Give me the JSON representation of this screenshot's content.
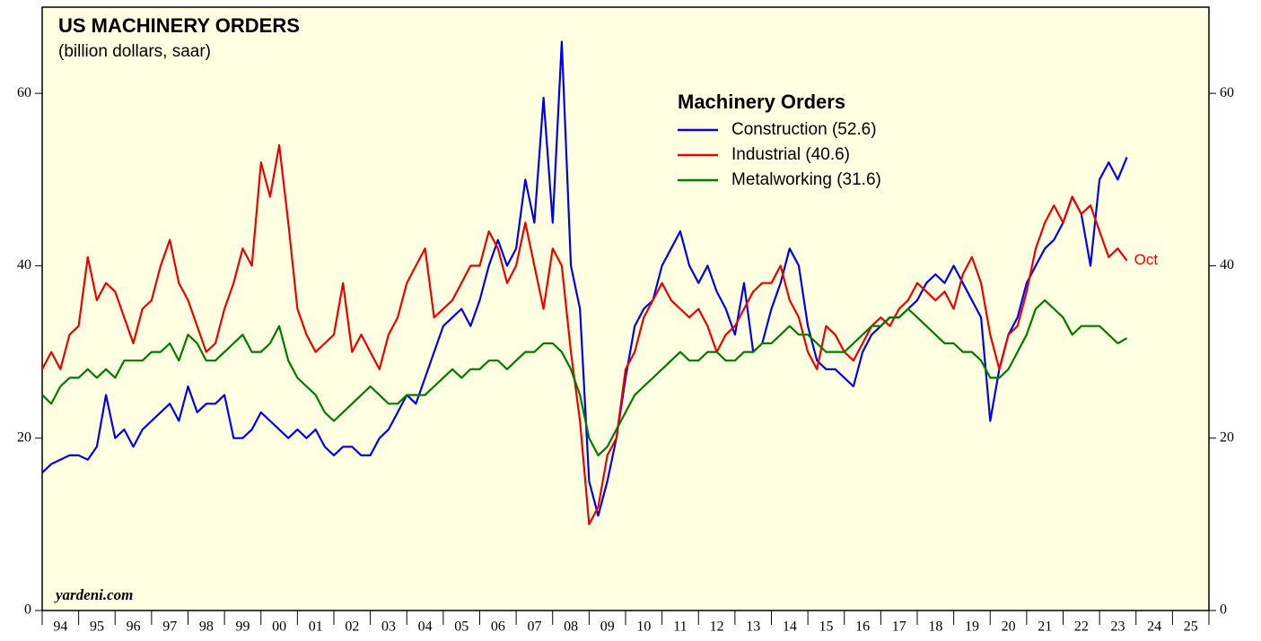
{
  "chart_data": {
    "type": "line",
    "title": "US MACHINERY ORDERS",
    "subtitle": "(billion dollars, saar)",
    "legend_title": "Machinery Orders",
    "annotation": "Oct",
    "source": "yardeni.com",
    "xlim": [
      1994,
      2026
    ],
    "xticks": [
      {
        "value": 1994,
        "label": "94"
      },
      {
        "value": 1995,
        "label": "95"
      },
      {
        "value": 1996,
        "label": "96"
      },
      {
        "value": 1997,
        "label": "97"
      },
      {
        "value": 1998,
        "label": "98"
      },
      {
        "value": 1999,
        "label": "99"
      },
      {
        "value": 2000,
        "label": "00"
      },
      {
        "value": 2001,
        "label": "01"
      },
      {
        "value": 2002,
        "label": "02"
      },
      {
        "value": 2003,
        "label": "03"
      },
      {
        "value": 2004,
        "label": "04"
      },
      {
        "value": 2005,
        "label": "05"
      },
      {
        "value": 2006,
        "label": "06"
      },
      {
        "value": 2007,
        "label": "07"
      },
      {
        "value": 2008,
        "label": "08"
      },
      {
        "value": 2009,
        "label": "09"
      },
      {
        "value": 2010,
        "label": "10"
      },
      {
        "value": 2011,
        "label": "11"
      },
      {
        "value": 2012,
        "label": "12"
      },
      {
        "value": 2013,
        "label": "13"
      },
      {
        "value": 2014,
        "label": "14"
      },
      {
        "value": 2015,
        "label": "15"
      },
      {
        "value": 2016,
        "label": "16"
      },
      {
        "value": 2017,
        "label": "17"
      },
      {
        "value": 2018,
        "label": "18"
      },
      {
        "value": 2019,
        "label": "19"
      },
      {
        "value": 2020,
        "label": "20"
      },
      {
        "value": 2021,
        "label": "21"
      },
      {
        "value": 2022,
        "label": "22"
      },
      {
        "value": 2023,
        "label": "23"
      },
      {
        "value": 2024,
        "label": "24"
      },
      {
        "value": 2025,
        "label": "25"
      }
    ],
    "ylim": [
      0,
      70
    ],
    "yticks": [
      0,
      20,
      40,
      60
    ],
    "x": [
      1994,
      1994.25,
      1994.5,
      1994.75,
      1995,
      1995.25,
      1995.5,
      1995.75,
      1996,
      1996.25,
      1996.5,
      1996.75,
      1997,
      1997.25,
      1997.5,
      1997.75,
      1998,
      1998.25,
      1998.5,
      1998.75,
      1999,
      1999.25,
      1999.5,
      1999.75,
      2000,
      2000.25,
      2000.5,
      2000.75,
      2001,
      2001.25,
      2001.5,
      2001.75,
      2002,
      2002.25,
      2002.5,
      2002.75,
      2003,
      2003.25,
      2003.5,
      2003.75,
      2004,
      2004.25,
      2004.5,
      2004.75,
      2005,
      2005.25,
      2005.5,
      2005.75,
      2006,
      2006.25,
      2006.5,
      2006.75,
      2007,
      2007.25,
      2007.5,
      2007.75,
      2008,
      2008.25,
      2008.5,
      2008.75,
      2009,
      2009.25,
      2009.5,
      2009.75,
      2010,
      2010.25,
      2010.5,
      2010.75,
      2011,
      2011.25,
      2011.5,
      2011.75,
      2012,
      2012.25,
      2012.5,
      2012.75,
      2013,
      2013.25,
      2013.5,
      2013.75,
      2014,
      2014.25,
      2014.5,
      2014.75,
      2015,
      2015.25,
      2015.5,
      2015.75,
      2016,
      2016.25,
      2016.5,
      2016.75,
      2017,
      2017.25,
      2017.5,
      2017.75,
      2018,
      2018.25,
      2018.5,
      2018.75,
      2019,
      2019.25,
      2019.5,
      2019.75,
      2020,
      2020.25,
      2020.5,
      2020.75,
      2021,
      2021.25,
      2021.5,
      2021.75,
      2022,
      2022.25,
      2022.5,
      2022.75,
      2023,
      2023.25,
      2023.5,
      2023.75
    ],
    "series": [
      {
        "name": "Construction (52.6)",
        "color": "#0000ee",
        "values": [
          16,
          17,
          17.5,
          18,
          18,
          17.5,
          19,
          25,
          20,
          21,
          19,
          21,
          22,
          23,
          24,
          22,
          26,
          23,
          24,
          24,
          25,
          20,
          20,
          21,
          23,
          22,
          21,
          20,
          21,
          20,
          21,
          19,
          18,
          19,
          19,
          18,
          18,
          20,
          21,
          23,
          25,
          24,
          27,
          30,
          33,
          34,
          35,
          33,
          36,
          40,
          43,
          40,
          42,
          50,
          45,
          59.5,
          45,
          66,
          40,
          35,
          15,
          11,
          15,
          20,
          27,
          33,
          35,
          36,
          40,
          42,
          44,
          40,
          38,
          40,
          37,
          35,
          32,
          38,
          30,
          31,
          35,
          38,
          42,
          40,
          33,
          29,
          28,
          28,
          27,
          26,
          30,
          32,
          33,
          34,
          34,
          35,
          36,
          38,
          39,
          38,
          40,
          38,
          36,
          34,
          22,
          28,
          32,
          34,
          38,
          40,
          42,
          43,
          45,
          48,
          46,
          40,
          50,
          52,
          50,
          52.6
        ]
      },
      {
        "name": "Industrial (40.6)",
        "color": "#ee0000",
        "values": [
          28,
          30,
          28,
          32,
          33,
          41,
          36,
          38,
          37,
          34,
          31,
          35,
          36,
          40,
          43,
          38,
          36,
          33,
          30,
          31,
          35,
          38,
          42,
          40,
          52,
          48,
          54,
          45,
          35,
          32,
          30,
          31,
          32,
          38,
          30,
          32,
          30,
          28,
          32,
          34,
          38,
          40,
          42,
          34,
          35,
          36,
          38,
          40,
          40,
          44,
          42,
          38,
          40,
          45,
          40,
          35,
          42,
          40,
          30,
          22,
          10,
          12,
          18,
          20,
          28,
          30,
          34,
          36,
          38,
          36,
          35,
          34,
          35,
          33,
          30,
          32,
          33,
          35,
          37,
          38,
          38,
          40,
          36,
          34,
          30,
          28,
          33,
          32,
          30,
          29,
          31,
          33,
          34,
          33,
          35,
          36,
          38,
          37,
          36,
          37,
          35,
          39,
          41,
          38,
          32,
          28,
          32,
          33,
          37,
          42,
          45,
          47,
          45,
          48,
          46,
          47,
          44,
          41,
          42,
          40.6
        ]
      },
      {
        "name": "Metalworking (31.6)",
        "color": "#007a00",
        "values": [
          25,
          24,
          26,
          27,
          27,
          28,
          27,
          28,
          27,
          29,
          29,
          29,
          30,
          30,
          31,
          29,
          32,
          31,
          29,
          29,
          30,
          31,
          32,
          30,
          30,
          31,
          33,
          29,
          27,
          26,
          25,
          23,
          22,
          23,
          24,
          25,
          26,
          25,
          24,
          24,
          25,
          25,
          25,
          26,
          27,
          28,
          27,
          28,
          28,
          29,
          29,
          28,
          29,
          30,
          30,
          31,
          31,
          30,
          28,
          25,
          20,
          18,
          19,
          21,
          23,
          25,
          26,
          27,
          28,
          29,
          30,
          29,
          29,
          30,
          30,
          29,
          29,
          30,
          30,
          31,
          31,
          32,
          33,
          32,
          32,
          31,
          30,
          30,
          30,
          31,
          32,
          33,
          33,
          34,
          34,
          35,
          34,
          33,
          32,
          31,
          31,
          30,
          30,
          29,
          27,
          27,
          28,
          30,
          32,
          35,
          36,
          35,
          34,
          32,
          33,
          33,
          33,
          32,
          31,
          31.6
        ]
      }
    ]
  }
}
